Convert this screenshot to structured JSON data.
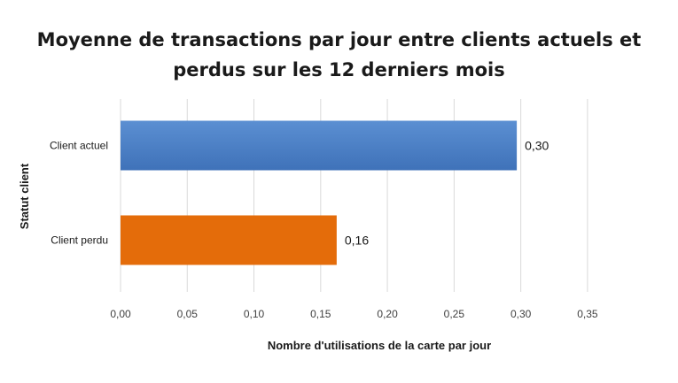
{
  "chart_data": {
    "type": "bar",
    "orientation": "horizontal",
    "title_lines": [
      "Moyenne de transactions par jour entre clients actuels et",
      "perdus sur les 12 derniers mois"
    ],
    "xlabel": "Nombre d'utilisations de la carte par jour",
    "ylabel": "Statut client",
    "categories": [
      "Client actuel",
      "Client perdu"
    ],
    "values": [
      0.297,
      0.162
    ],
    "data_labels": [
      "0,30",
      "0,16"
    ],
    "colors": [
      "#4a7ec4",
      "#e46c0a"
    ],
    "xlim": [
      0,
      0.37
    ],
    "xticks": [
      0,
      0.05,
      0.1,
      0.15,
      0.2,
      0.25,
      0.3,
      0.35
    ],
    "xtick_labels": [
      "0,00",
      "0,05",
      "0,10",
      "0,15",
      "0,20",
      "0,25",
      "0,30",
      "0,35"
    ],
    "grid": true,
    "legend": "none"
  }
}
